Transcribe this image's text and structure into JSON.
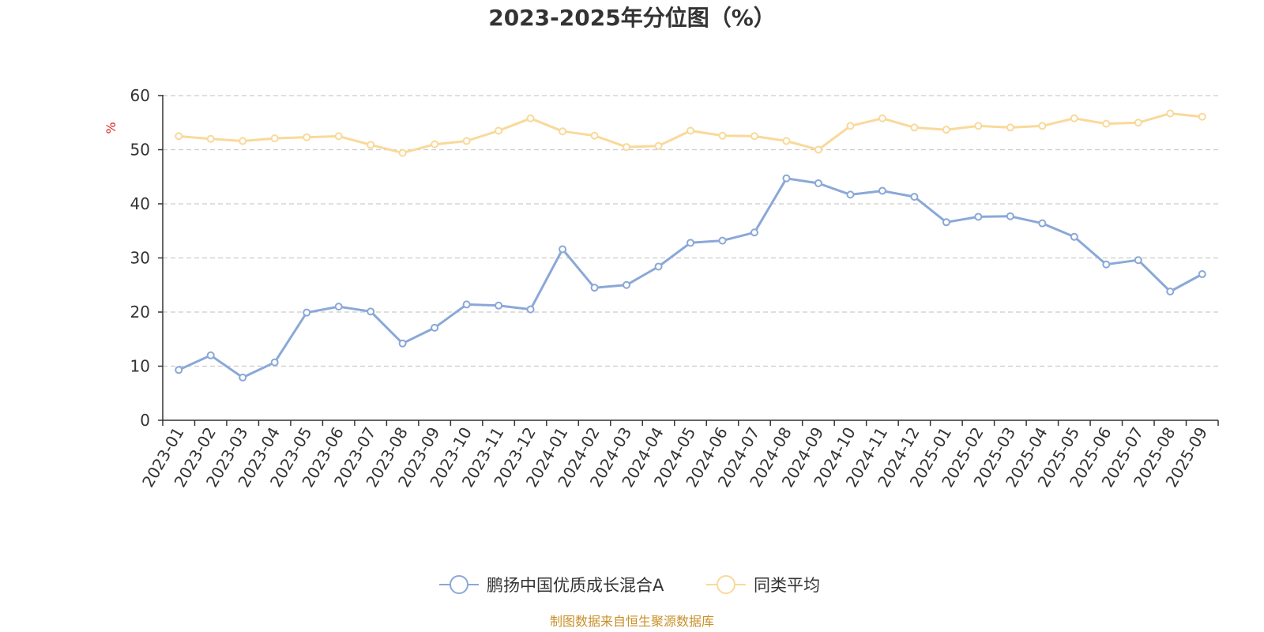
{
  "chart_data": {
    "type": "line",
    "title": "2023-2025年分位图（%）",
    "ylabel": "%",
    "xlabel": "",
    "ylim": [
      0,
      60
    ],
    "yticks": [
      0,
      10,
      20,
      30,
      40,
      50,
      60
    ],
    "grid": true,
    "legend_position": "bottom-center",
    "categories": [
      "2023-01",
      "2023-02",
      "2023-03",
      "2023-04",
      "2023-05",
      "2023-06",
      "2023-07",
      "2023-08",
      "2023-09",
      "2023-10",
      "2023-11",
      "2023-12",
      "2024-01",
      "2024-02",
      "2024-03",
      "2024-04",
      "2024-05",
      "2024-06",
      "2024-07",
      "2024-08",
      "2024-09",
      "2024-10",
      "2024-11",
      "2024-12",
      "2025-01",
      "2025-02",
      "2025-03",
      "2025-04",
      "2025-05",
      "2025-06",
      "2025-07",
      "2025-08",
      "2025-09"
    ],
    "series": [
      {
        "name": "鹏扬中国优质成长混合A",
        "color": "#8aa8d8",
        "values": [
          9.3,
          12.0,
          7.9,
          10.7,
          19.9,
          21.0,
          20.1,
          14.2,
          17.1,
          21.4,
          21.2,
          20.5,
          31.6,
          24.5,
          25.0,
          28.4,
          32.8,
          33.2,
          34.7,
          44.7,
          43.8,
          41.7,
          42.4,
          41.3,
          36.6,
          37.6,
          37.7,
          36.4,
          33.9,
          28.8,
          29.6,
          23.8,
          27.0
        ]
      },
      {
        "name": "同类平均",
        "color": "#f9d99a",
        "values": [
          52.5,
          52.0,
          51.6,
          52.1,
          52.3,
          52.5,
          50.9,
          49.4,
          51.0,
          51.6,
          53.5,
          55.8,
          53.4,
          52.6,
          50.5,
          50.7,
          53.5,
          52.6,
          52.5,
          51.6,
          50.0,
          54.4,
          55.8,
          54.1,
          53.7,
          54.4,
          54.1,
          54.4,
          55.8,
          54.8,
          55.0,
          56.7,
          56.1
        ]
      }
    ]
  },
  "source_note": "制图数据来自恒生聚源数据库",
  "colors": {
    "axis": "#333333",
    "grid": "#cccccc",
    "unit_label": "#e02020",
    "source_note": "#c8902a"
  }
}
